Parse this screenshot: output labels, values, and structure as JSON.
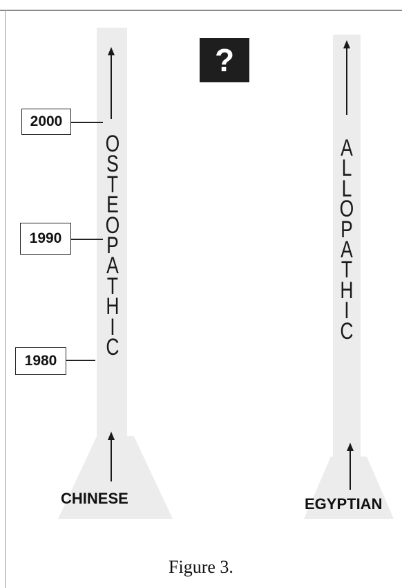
{
  "question_mark": "?",
  "left_tower": {
    "word": [
      "O",
      "S",
      "T",
      "E",
      "O",
      "P",
      "A",
      "T",
      "H",
      "I",
      "C"
    ],
    "base_label": "CHINESE",
    "years": [
      "2000",
      "1990",
      "1980"
    ]
  },
  "right_tower": {
    "word": [
      "A",
      "L",
      "L",
      "O",
      "P",
      "A",
      "T",
      "H",
      "I",
      "C"
    ],
    "base_label": "EGYPTIAN"
  },
  "caption": "Figure 3.",
  "colors": {
    "ink": "#1a1a1a",
    "tower_fill": "#ececec",
    "question_box": "#1e1e1e"
  }
}
